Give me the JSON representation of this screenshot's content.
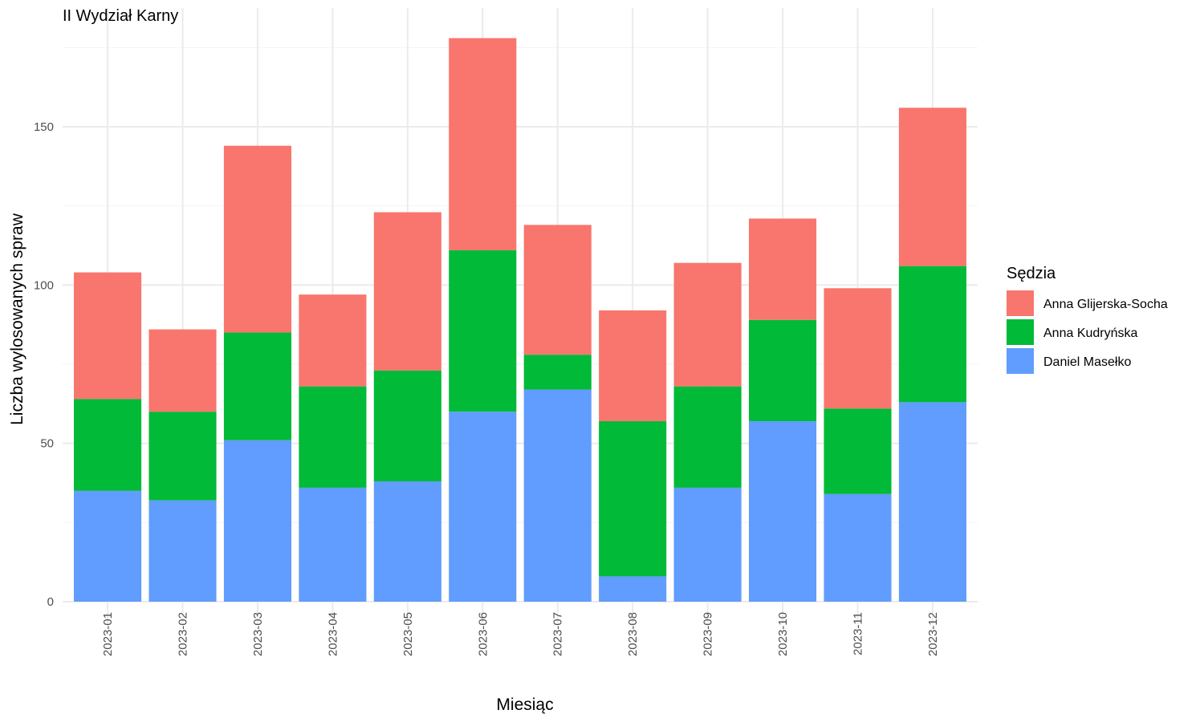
{
  "chart_data": {
    "type": "bar",
    "stacked": true,
    "title": "II Wydział Karny",
    "xlabel": "Miesiąc",
    "ylabel": "Liczba wylosowanych spraw",
    "ylim": [
      0,
      180
    ],
    "yticks": [
      0,
      50,
      100,
      150
    ],
    "grid": true,
    "legend": {
      "title": "Sędzia",
      "placement": "right"
    },
    "categories": [
      "2023-01",
      "2023-02",
      "2023-03",
      "2023-04",
      "2023-05",
      "2023-06",
      "2023-07",
      "2023-08",
      "2023-09",
      "2023-10",
      "2023-11",
      "2023-12"
    ],
    "series": [
      {
        "name": "Daniel Masełko",
        "color": "#619CFF",
        "values": [
          35,
          32,
          51,
          36,
          38,
          60,
          67,
          8,
          36,
          57,
          34,
          63
        ]
      },
      {
        "name": "Anna Kudryńska",
        "color": "#00BA38",
        "values": [
          29,
          28,
          34,
          32,
          35,
          51,
          11,
          49,
          32,
          32,
          27,
          43
        ]
      },
      {
        "name": "Anna Glijerska-Socha",
        "color": "#F8766D",
        "values": [
          40,
          26,
          59,
          29,
          50,
          67,
          41,
          35,
          39,
          32,
          38,
          50
        ]
      }
    ],
    "legend_order": [
      "Anna Glijerska-Socha",
      "Anna Kudryńska",
      "Daniel Masełko"
    ]
  }
}
